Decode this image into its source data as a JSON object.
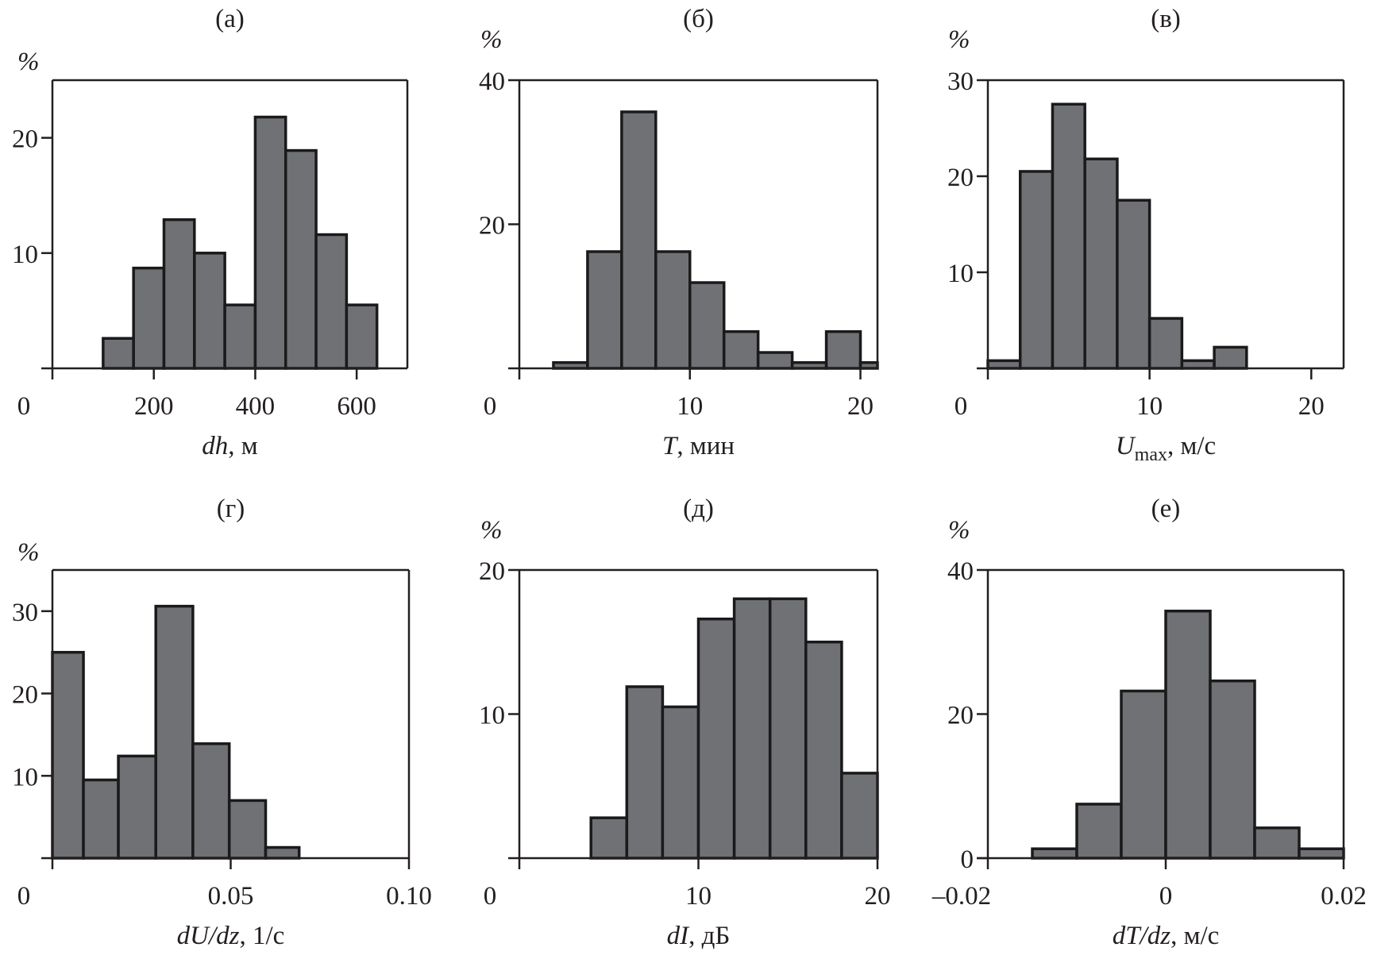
{
  "figure": {
    "panel_count": 6,
    "bar_fill": "#707175",
    "bar_stroke": "#1a1a1a",
    "axis_color": "#231f20"
  },
  "chart_data": [
    {
      "id": "a",
      "type": "bar",
      "title": "(a)",
      "ylabel": "%",
      "xlabel": {
        "var": "dh",
        "unit": ", м"
      },
      "xlim": [
        0,
        700
      ],
      "ylim": [
        0,
        25
      ],
      "xticks": [
        0,
        200,
        400,
        600
      ],
      "xtick_labels": [
        "0",
        "200",
        "400",
        "600"
      ],
      "yticks": [
        10,
        20
      ],
      "ytick_labels": [
        "10",
        "20"
      ],
      "bin_edges": [
        100,
        160,
        220,
        280,
        340,
        400,
        460,
        520,
        580,
        640
      ],
      "values": [
        2.6,
        8.7,
        12.9,
        10.0,
        5.5,
        21.8,
        18.9,
        11.6,
        5.5
      ],
      "grid": false
    },
    {
      "id": "b",
      "type": "bar",
      "title": "(б)",
      "ylabel": "%",
      "xlabel": {
        "var": "T",
        "unit": ", мин"
      },
      "xlim": [
        0,
        21
      ],
      "ylim": [
        0,
        40
      ],
      "xticks": [
        0,
        10,
        20
      ],
      "xtick_labels": [
        "0",
        "10",
        "20"
      ],
      "yticks": [
        20,
        40
      ],
      "ytick_labels": [
        "20",
        "40"
      ],
      "bin_edges": [
        2,
        4,
        6,
        8,
        10,
        12,
        14,
        16,
        18,
        20,
        22
      ],
      "values": [
        0.8,
        16.2,
        35.6,
        16.2,
        11.9,
        5.1,
        2.2,
        0.8,
        5.1,
        0.8
      ],
      "grid": false
    },
    {
      "id": "v",
      "type": "bar",
      "title": "(в)",
      "ylabel": "%",
      "xlabel": {
        "var": "U",
        "sub": "max",
        "unit": ", м/с"
      },
      "xlim": [
        0,
        22
      ],
      "ylim": [
        0,
        30
      ],
      "xticks": [
        0,
        10,
        20
      ],
      "xtick_labels": [
        "0",
        "10",
        "20"
      ],
      "yticks": [
        10,
        20,
        30
      ],
      "ytick_labels": [
        "10",
        "20",
        "30"
      ],
      "bin_edges": [
        0,
        2,
        4,
        6,
        8,
        10,
        12,
        14,
        16
      ],
      "values": [
        0.8,
        20.5,
        27.5,
        21.8,
        17.5,
        5.2,
        0.8,
        2.2
      ],
      "grid": false
    },
    {
      "id": "g",
      "type": "bar",
      "title": "(г)",
      "ylabel": "%",
      "xlabel": {
        "var": "dU/dz",
        "unit": ", 1/с"
      },
      "xlim": [
        0,
        0.1
      ],
      "ylim": [
        0,
        35
      ],
      "xticks": [
        0,
        0.05,
        0.1
      ],
      "xtick_labels": [
        "0",
        "0.05",
        "0.10"
      ],
      "yticks": [
        10,
        20,
        30
      ],
      "ytick_labels": [
        "10",
        "20",
        "30"
      ],
      "bin_edges": [
        0,
        0.0087,
        0.0185,
        0.029,
        0.0394,
        0.0496,
        0.0598,
        0.0692
      ],
      "values": [
        25.0,
        9.5,
        12.4,
        30.6,
        13.9,
        7.0,
        1.3
      ],
      "grid": false
    },
    {
      "id": "d",
      "type": "bar",
      "title": "(д)",
      "ylabel": "%",
      "xlabel": {
        "var": "dI",
        "unit": ", дБ"
      },
      "xlim": [
        0,
        20
      ],
      "ylim": [
        0,
        20
      ],
      "xticks": [
        0,
        10,
        20
      ],
      "xtick_labels": [
        "0",
        "10",
        "20"
      ],
      "yticks": [
        10,
        20
      ],
      "ytick_labels": [
        "10",
        "20"
      ],
      "bin_edges": [
        4,
        6,
        8,
        10,
        12,
        14,
        16,
        18,
        20
      ],
      "values": [
        2.8,
        11.9,
        10.5,
        16.6,
        18.0,
        18.0,
        15.0,
        5.9
      ],
      "grid": false
    },
    {
      "id": "e",
      "type": "bar",
      "title": "(е)",
      "ylabel": "%",
      "xlabel": {
        "var": "dT/dz",
        "unit": ", м/с"
      },
      "xlim": [
        -0.02,
        0.02
      ],
      "ylim": [
        0,
        40
      ],
      "xticks": [
        -0.02,
        0,
        0.02
      ],
      "xtick_labels": [
        "–0.02",
        "0",
        "0.02"
      ],
      "yticks": [
        0,
        20,
        40
      ],
      "ytick_labels": [
        "0",
        "20",
        "40"
      ],
      "bin_edges": [
        -0.015,
        -0.01,
        -0.005,
        0,
        0.005,
        0.01,
        0.015,
        0.02
      ],
      "values": [
        1.3,
        7.5,
        23.2,
        34.3,
        24.6,
        4.2,
        1.3
      ],
      "grid": false
    }
  ]
}
